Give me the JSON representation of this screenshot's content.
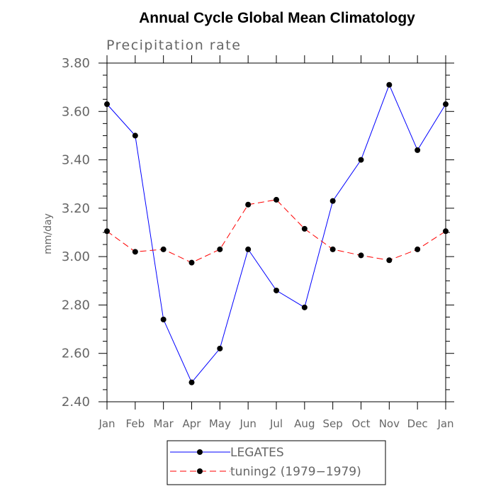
{
  "chart_data": {
    "type": "line",
    "title": "Annual Cycle Global Mean Climatology",
    "subtitle": "Precipitation rate",
    "xlabel": "",
    "ylabel": "mm/day",
    "categories": [
      "Jan",
      "Feb",
      "Mar",
      "Apr",
      "May",
      "Jun",
      "Jul",
      "Aug",
      "Sep",
      "Oct",
      "Nov",
      "Dec",
      "Jan"
    ],
    "ylim": [
      2.4,
      3.8
    ],
    "yticks": [
      "2.40",
      "2.60",
      "2.80",
      "3.00",
      "3.20",
      "3.40",
      "3.60",
      "3.80"
    ],
    "grid": false,
    "legend_position": "bottom-center",
    "series": [
      {
        "name": "LEGATES",
        "color": "#0000ff",
        "line_style": "solid",
        "marker": "filled-circle",
        "values": [
          3.63,
          3.5,
          2.74,
          2.48,
          2.62,
          3.03,
          2.86,
          2.79,
          3.23,
          3.4,
          3.71,
          3.44,
          3.63
        ]
      },
      {
        "name": "tuning2 (1979−1979)",
        "color": "#ff0000",
        "line_style": "dashed",
        "marker": "filled-circle",
        "values": [
          3.105,
          3.02,
          3.03,
          2.975,
          3.03,
          3.215,
          3.235,
          3.115,
          3.03,
          3.005,
          2.985,
          3.03,
          3.105
        ]
      }
    ]
  }
}
